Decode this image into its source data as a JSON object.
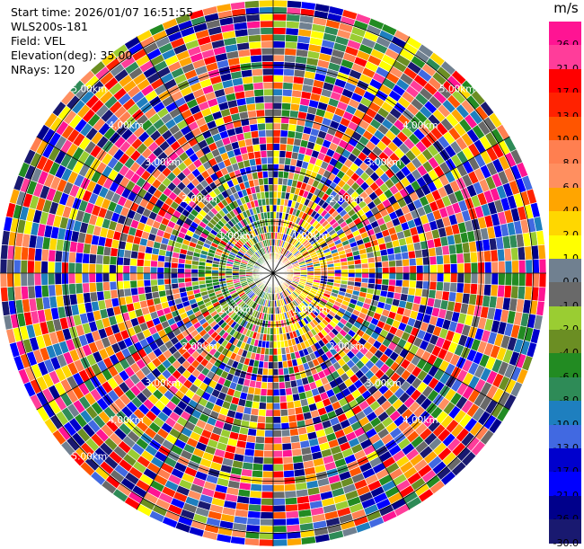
{
  "chart_data": {
    "type": "heatmap",
    "subtype": "radar-ppi",
    "title_block": {
      "start_time": "Start time: 2026/01/07 16:51:55",
      "instrument": "WLS200s-181",
      "field": "Field: VEL",
      "elevation": "Elevation(deg): 35.00",
      "nrays": "NRays: 120"
    },
    "n_rays": 120,
    "n_gates": 40,
    "range_rings_km": [
      1.0,
      2.0,
      3.0,
      4.0,
      5.0
    ],
    "ring_labels": {
      "ne": [
        "1.00km",
        "2.00km",
        "3.00km",
        "4.00km",
        "5.00km"
      ],
      "nw": [
        "1.00km",
        "2.00km",
        "3.00km",
        "4.00km",
        "5.00km"
      ],
      "se": [
        "1.00km",
        "2.00km",
        "3.00km",
        "4.00km"
      ],
      "sw": [
        "1.00km",
        "2.00km",
        "3.00km",
        "4.00km",
        "5.00km"
      ]
    },
    "colorbar": {
      "unit": "m/s",
      "levels": [
        "26.0",
        "21.0",
        "17.0",
        "13.0",
        "10.0",
        "8.0",
        "6.0",
        "4.0",
        "2.0",
        "1.0",
        "0.0",
        "-1.0",
        "-2.0",
        "-4.0",
        "-6.0",
        "-8.0",
        "-10.0",
        "-13.0",
        "-17.0",
        "-21.0",
        "-26.0",
        "-30.0"
      ],
      "colors": [
        "#ff1493",
        "#ff3d9a",
        "#ff0000",
        "#ff2200",
        "#ff5500",
        "#ff7f50",
        "#ff8f60",
        "#ffa500",
        "#ffd700",
        "#ffff00",
        "#708090",
        "#696969",
        "#9acd32",
        "#6b8e23",
        "#228b22",
        "#2e8b57",
        "#1e7fbf",
        "#4169e1",
        "#0000cd",
        "#0000ff",
        "#00008b",
        "#191970"
      ]
    },
    "grid": true
  }
}
